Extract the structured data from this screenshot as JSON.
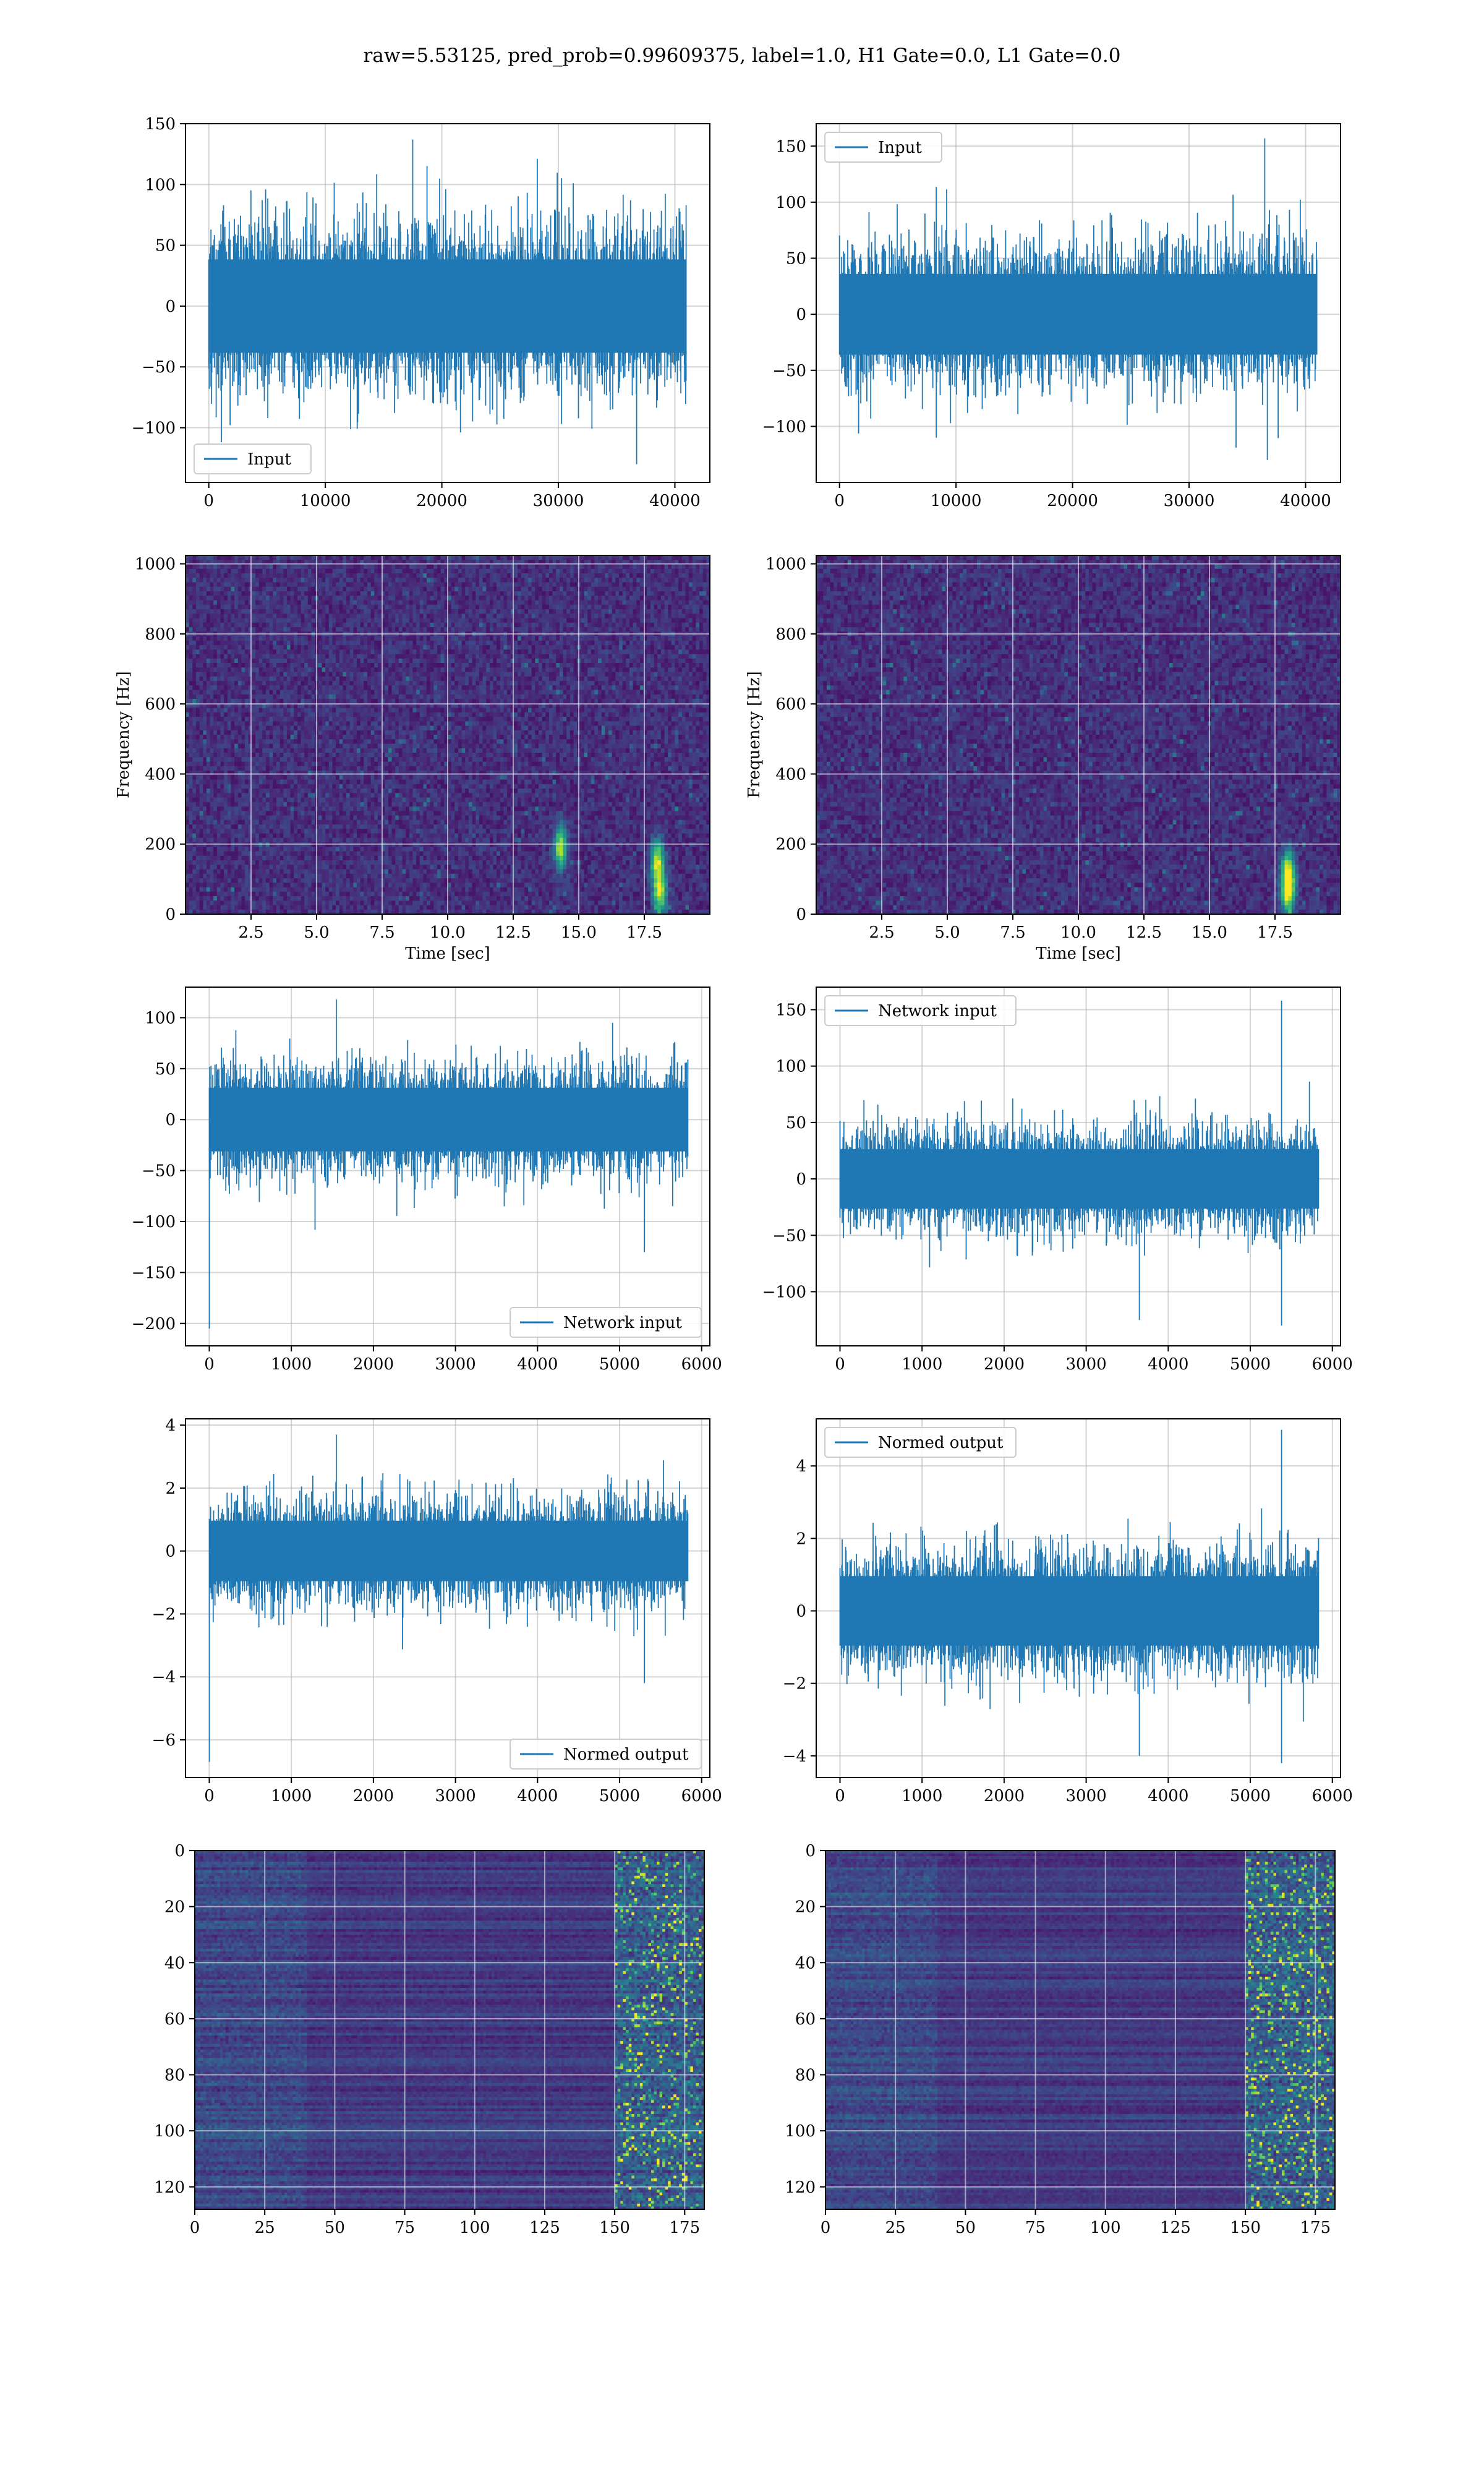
{
  "figure": {
    "suptitle": "raw=5.53125, pred_prob=0.99609375, label=1.0, H1 Gate=0.0, L1 Gate=0.0"
  },
  "colors": {
    "line": "#1f77b4",
    "grid": "#b0b0b0",
    "viridis": [
      "#440154",
      "#482878",
      "#3e4989",
      "#31688e",
      "#26828e",
      "#1f9e89",
      "#35b779",
      "#6ece58",
      "#b5de2b",
      "#fde725"
    ]
  },
  "chart_data": [
    {
      "type": "line",
      "id": "p1",
      "series": [
        {
          "name": "Input",
          "x_range": [
            0,
            40960
          ],
          "amplitude_std": 32,
          "spikes": [
            [
              17500,
              137
            ],
            [
              36700,
              -130
            ]
          ]
        }
      ],
      "xlim": [
        -2000,
        43000
      ],
      "ylim": [
        -145,
        150
      ],
      "xticks": [
        0,
        10000,
        20000,
        30000,
        40000
      ],
      "yticks": [
        -100,
        -50,
        0,
        50,
        100,
        150
      ],
      "xtick_labels": [
        "0",
        "10000",
        "20000",
        "30000",
        "40000"
      ],
      "ytick_labels": [
        "−100",
        "−50",
        "0",
        "50",
        "100",
        "150"
      ],
      "legend": "lower-left",
      "grid": true
    },
    {
      "type": "line",
      "id": "p2",
      "series": [
        {
          "name": "Input",
          "x_range": [
            0,
            40960
          ],
          "amplitude_std": 30,
          "spikes": [
            [
              36500,
              157
            ],
            [
              36700,
              -130
            ]
          ]
        }
      ],
      "xlim": [
        -2000,
        43000
      ],
      "ylim": [
        -150,
        170
      ],
      "xticks": [
        0,
        10000,
        20000,
        30000,
        40000
      ],
      "yticks": [
        -100,
        -50,
        0,
        50,
        100,
        150
      ],
      "xtick_labels": [
        "0",
        "10000",
        "20000",
        "30000",
        "40000"
      ],
      "ytick_labels": [
        "−100",
        "−50",
        "0",
        "50",
        "100",
        "150"
      ],
      "legend": "upper-left",
      "grid": true
    },
    {
      "type": "heatmap",
      "id": "p3",
      "colormap": "viridis",
      "xlabel": "Time [sec]",
      "ylabel": "Frequency [Hz]",
      "xlim": [
        0,
        20
      ],
      "ylim": [
        0,
        1024
      ],
      "xticks": [
        2.5,
        5.0,
        7.5,
        10.0,
        12.5,
        15.0,
        17.5
      ],
      "yticks": [
        0,
        200,
        400,
        600,
        800,
        1000
      ],
      "xtick_labels": [
        "2.5",
        "5.0",
        "7.5",
        "10.0",
        "12.5",
        "15.0",
        "17.5"
      ],
      "ytick_labels": [
        "0",
        "200",
        "400",
        "600",
        "800",
        "1000"
      ],
      "grid": true,
      "hotspots": [
        [
          18.1,
          60
        ],
        [
          18.0,
          150
        ],
        [
          14.3,
          190
        ]
      ]
    },
    {
      "type": "heatmap",
      "id": "p4",
      "colormap": "viridis",
      "xlabel": "Time [sec]",
      "ylabel": "Frequency [Hz]",
      "xlim": [
        0,
        20
      ],
      "ylim": [
        0,
        1024
      ],
      "xticks": [
        2.5,
        5.0,
        7.5,
        10.0,
        12.5,
        15.0,
        17.5
      ],
      "yticks": [
        0,
        200,
        400,
        600,
        800,
        1000
      ],
      "xtick_labels": [
        "2.5",
        "5.0",
        "7.5",
        "10.0",
        "12.5",
        "15.0",
        "17.5"
      ],
      "ytick_labels": [
        "0",
        "200",
        "400",
        "600",
        "800",
        "1000"
      ],
      "grid": true,
      "hotspots": [
        [
          18.0,
          60
        ],
        [
          18.0,
          120
        ]
      ]
    },
    {
      "type": "line",
      "id": "p5",
      "series": [
        {
          "name": "Network input",
          "x_range": [
            0,
            5832
          ],
          "amplitude_std": 26,
          "spikes": [
            [
              0,
              -205
            ],
            [
              1550,
              118
            ],
            [
              5300,
              -130
            ]
          ]
        }
      ],
      "xlim": [
        -290,
        6100
      ],
      "ylim": [
        -222,
        130
      ],
      "xticks": [
        0,
        1000,
        2000,
        3000,
        4000,
        5000,
        6000
      ],
      "yticks": [
        -200,
        -150,
        -100,
        -50,
        0,
        50,
        100
      ],
      "xtick_labels": [
        "0",
        "1000",
        "2000",
        "3000",
        "4000",
        "5000",
        "6000"
      ],
      "ytick_labels": [
        "−200",
        "−150",
        "−100",
        "−50",
        "0",
        "50",
        "100"
      ],
      "legend": "lower-right",
      "grid": true
    },
    {
      "type": "line",
      "id": "p6",
      "series": [
        {
          "name": "Network input",
          "x_range": [
            0,
            5832
          ],
          "amplitude_std": 22,
          "spikes": [
            [
              5380,
              158
            ],
            [
              5380,
              -130
            ],
            [
              3650,
              -125
            ]
          ]
        }
      ],
      "xlim": [
        -290,
        6100
      ],
      "ylim": [
        -148,
        170
      ],
      "xticks": [
        0,
        1000,
        2000,
        3000,
        4000,
        5000,
        6000
      ],
      "yticks": [
        -100,
        -50,
        0,
        50,
        100,
        150
      ],
      "xtick_labels": [
        "0",
        "1000",
        "2000",
        "3000",
        "4000",
        "5000",
        "6000"
      ],
      "ytick_labels": [
        "−100",
        "−50",
        "0",
        "50",
        "100",
        "150"
      ],
      "legend": "upper-left",
      "grid": true
    },
    {
      "type": "line",
      "id": "p7",
      "series": [
        {
          "name": "Normed output",
          "x_range": [
            0,
            5832
          ],
          "amplitude_std": 0.8,
          "spikes": [
            [
              0,
              -6.7
            ],
            [
              1550,
              3.7
            ],
            [
              5300,
              -4.2
            ]
          ]
        }
      ],
      "xlim": [
        -290,
        6100
      ],
      "ylim": [
        -7.2,
        4.2
      ],
      "xticks": [
        0,
        1000,
        2000,
        3000,
        4000,
        5000,
        6000
      ],
      "yticks": [
        -6,
        -4,
        -2,
        0,
        2,
        4
      ],
      "xtick_labels": [
        "0",
        "1000",
        "2000",
        "3000",
        "4000",
        "5000",
        "6000"
      ],
      "ytick_labels": [
        "−6",
        "−4",
        "−2",
        "0",
        "2",
        "4"
      ],
      "legend": "lower-right",
      "grid": true
    },
    {
      "type": "line",
      "id": "p8",
      "series": [
        {
          "name": "Normed output",
          "x_range": [
            0,
            5832
          ],
          "amplitude_std": 0.8,
          "spikes": [
            [
              5380,
              5.0
            ],
            [
              5380,
              -4.2
            ],
            [
              3650,
              -4.0
            ]
          ]
        }
      ],
      "xlim": [
        -290,
        6100
      ],
      "ylim": [
        -4.6,
        5.3
      ],
      "xticks": [
        0,
        1000,
        2000,
        3000,
        4000,
        5000,
        6000
      ],
      "yticks": [
        -4,
        -2,
        0,
        2,
        4
      ],
      "xtick_labels": [
        "0",
        "1000",
        "2000",
        "3000",
        "4000",
        "5000",
        "6000"
      ],
      "ytick_labels": [
        "−4",
        "−2",
        "0",
        "2",
        "4"
      ],
      "legend": "upper-left",
      "grid": true
    },
    {
      "type": "heatmap",
      "id": "p9",
      "colormap": "viridis",
      "xlim": [
        0,
        182
      ],
      "ylim": [
        128,
        0
      ],
      "xticks": [
        0,
        25,
        50,
        75,
        100,
        125,
        150,
        175
      ],
      "yticks": [
        0,
        20,
        40,
        60,
        80,
        100,
        120
      ],
      "xtick_labels": [
        "0",
        "25",
        "50",
        "75",
        "100",
        "125",
        "150",
        "175"
      ],
      "ytick_labels": [
        "0",
        "20",
        "40",
        "60",
        "80",
        "100",
        "120"
      ],
      "grid": true,
      "bright_band_x": [
        150,
        182
      ]
    },
    {
      "type": "heatmap",
      "id": "p10",
      "colormap": "viridis",
      "xlim": [
        0,
        182
      ],
      "ylim": [
        128,
        0
      ],
      "xticks": [
        0,
        25,
        50,
        75,
        100,
        125,
        150,
        175
      ],
      "yticks": [
        0,
        20,
        40,
        60,
        80,
        100,
        120
      ],
      "xtick_labels": [
        "0",
        "25",
        "50",
        "75",
        "100",
        "125",
        "150",
        "175"
      ],
      "ytick_labels": [
        "0",
        "20",
        "40",
        "60",
        "80",
        "100",
        "120"
      ],
      "grid": true,
      "bright_band_x": [
        150,
        182
      ]
    }
  ]
}
